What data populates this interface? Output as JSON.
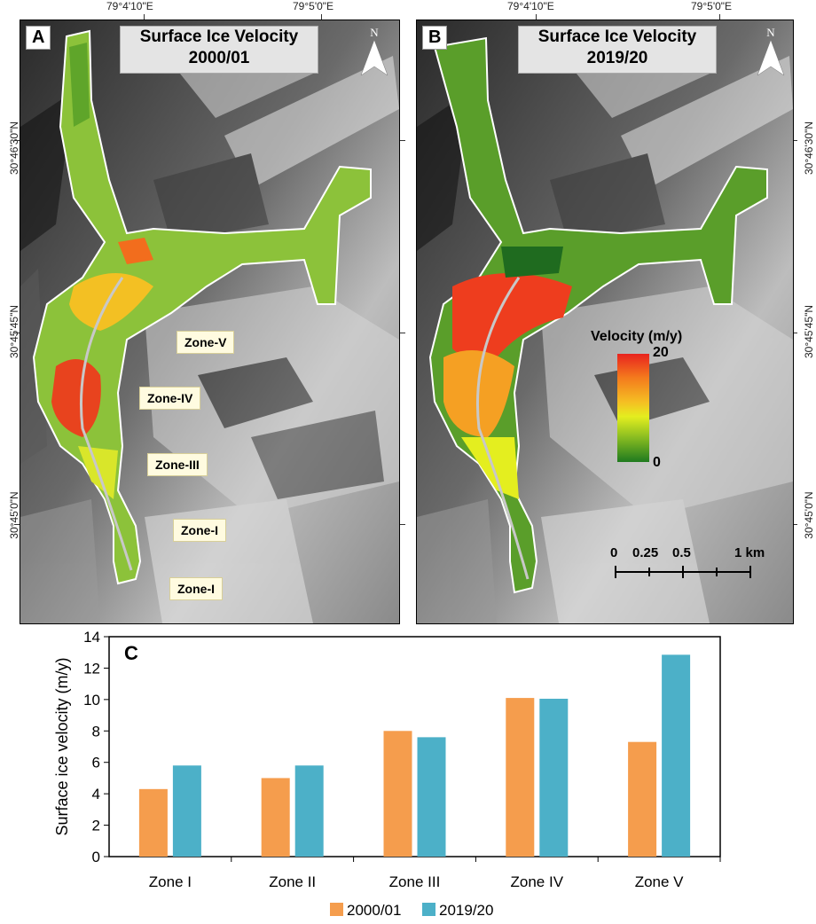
{
  "top_coords": [
    "79°4'10\"E",
    "79°5'0\"E"
  ],
  "side_coords": [
    "30°46'30\"N",
    "30°45'45\"N",
    "30°45'0\"N"
  ],
  "panel_a": {
    "letter": "A",
    "title_line1": "Surface Ice Velocity",
    "title_line2": "2000/01",
    "north": "N",
    "zones": [
      "Zone-V",
      "Zone-IV",
      "Zone-III",
      "Zone-I",
      "Zone-I"
    ]
  },
  "panel_b": {
    "letter": "B",
    "title_line1": "Surface Ice Velocity",
    "title_line2": "2019/20",
    "north": "N",
    "legend": {
      "title": "Velocity (m/y)",
      "max": "20",
      "min": "0"
    },
    "scalebar": {
      "labels": [
        "0",
        "0.25",
        "0.5",
        "1 km"
      ]
    }
  },
  "panel_c": {
    "letter": "C"
  },
  "colors": {
    "series_2000": "#f59d4d",
    "series_2019": "#4cb0c8",
    "ramp_high": "#e8231e",
    "ramp_mid": "#e4ee1f",
    "ramp_low": "#1f7a1f"
  },
  "chart_data": {
    "type": "bar",
    "categories": [
      "Zone I",
      "Zone II",
      "Zone III",
      "Zone IV",
      "Zone V"
    ],
    "series": [
      {
        "name": "2000/01",
        "values": [
          4.3,
          5.0,
          8.0,
          10.1,
          7.3
        ]
      },
      {
        "name": "2019/20",
        "values": [
          5.8,
          5.8,
          7.6,
          10.05,
          12.85
        ]
      }
    ],
    "xlabel": "",
    "ylabel": "Surface ice velocity (m/y)",
    "ylim": [
      0,
      14
    ],
    "yticks": [
      0,
      2,
      4,
      6,
      8,
      10,
      12,
      14
    ],
    "grid": false,
    "legend_position": "bottom"
  }
}
